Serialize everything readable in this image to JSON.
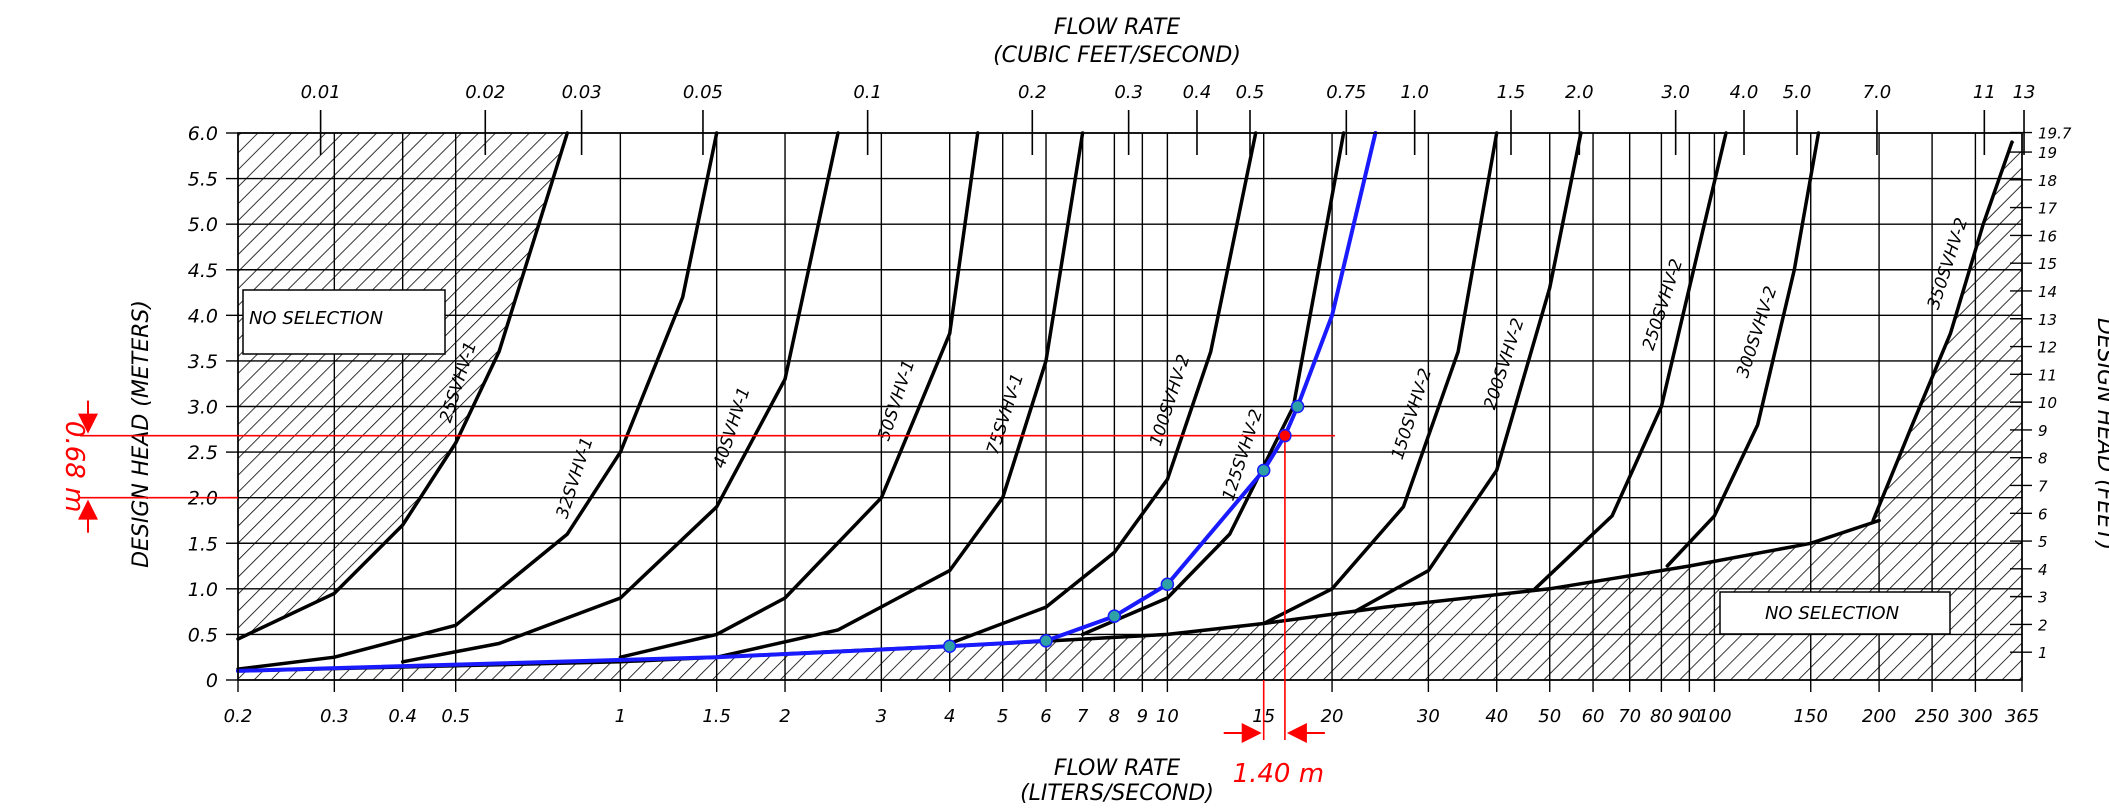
{
  "chart_data": {
    "type": "line",
    "title": "FLOW RATE",
    "subtitle": "(CUBIC FEET/SECOND)",
    "xlabel": "FLOW RATE",
    "xlabel_sub": "(LITERS/SECOND)",
    "ylabel": "DESIGN HEAD (METERS)",
    "y2label": "DESIGN HEAD (FEET)",
    "x_scale": "log",
    "x_range_lps": [
      0.2,
      365
    ],
    "y_range_m": [
      0,
      6
    ],
    "grid": true,
    "bottom_ticks": [
      "0.2",
      "0.3",
      "0.4",
      "0.5",
      "1",
      "1.5",
      "2",
      "3",
      "4",
      "5",
      "6",
      "7",
      "8",
      "9",
      "10",
      "15",
      "20",
      "30",
      "40",
      "50",
      "60",
      "70",
      "80",
      "90",
      "100",
      "150",
      "200",
      "250",
      "300",
      "365"
    ],
    "bottom_tick_values": [
      0.2,
      0.3,
      0.4,
      0.5,
      1,
      1.5,
      2,
      3,
      4,
      5,
      6,
      7,
      8,
      9,
      10,
      15,
      20,
      30,
      40,
      50,
      60,
      70,
      80,
      90,
      100,
      150,
      200,
      250,
      300,
      365
    ],
    "top_ticks": [
      "0.01",
      "0.02",
      "0.03",
      "0.05",
      "0.1",
      "0.2",
      "0.3",
      "0.4",
      "0.5",
      "0.75",
      "1.0",
      "1.5",
      "2.0",
      "3.0",
      "4.0",
      "5.0",
      "7.0",
      "11",
      "13"
    ],
    "top_tick_values": [
      0.01,
      0.02,
      0.03,
      0.05,
      0.1,
      0.2,
      0.3,
      0.4,
      0.5,
      0.75,
      1.0,
      1.5,
      2.0,
      3.0,
      4.0,
      5.0,
      7.0,
      11,
      13
    ],
    "left_ticks": [
      "0",
      "0.5",
      "1.0",
      "1.5",
      "2.0",
      "2.5",
      "3.0",
      "3.5",
      "4.0",
      "4.5",
      "5.0",
      "5.5",
      "6.0"
    ],
    "left_tick_values": [
      0,
      0.5,
      1,
      1.5,
      2,
      2.5,
      3,
      3.5,
      4,
      4.5,
      5,
      5.5,
      6
    ],
    "right_ticks": [
      "1",
      "2",
      "3",
      "4",
      "5",
      "6",
      "7",
      "8",
      "9",
      "10",
      "11",
      "12",
      "13",
      "14",
      "15",
      "16",
      "17",
      "18",
      "19",
      "19.7"
    ],
    "right_tick_values": [
      1,
      2,
      3,
      4,
      5,
      6,
      7,
      8,
      9,
      10,
      11,
      12,
      13,
      14,
      15,
      16,
      17,
      18,
      19,
      19.7
    ],
    "no_selection_labels": [
      "NO SELECTION",
      "NO SELECTION"
    ],
    "series": [
      {
        "name": "25SVHV-1",
        "x": [
          0.2,
          0.3,
          0.4,
          0.5,
          0.6,
          0.8
        ],
        "y": [
          0.45,
          0.95,
          1.7,
          2.6,
          3.6,
          6.0
        ]
      },
      {
        "name": "32SVHV-1",
        "x": [
          0.2,
          0.3,
          0.5,
          0.8,
          1.0,
          1.3,
          1.5
        ],
        "y": [
          0.12,
          0.25,
          0.6,
          1.6,
          2.5,
          4.2,
          6.0
        ]
      },
      {
        "name": "40SVHV-1",
        "x": [
          0.4,
          0.6,
          1.0,
          1.5,
          2.0,
          2.5
        ],
        "y": [
          0.2,
          0.4,
          0.9,
          1.9,
          3.3,
          6.0
        ]
      },
      {
        "name": "50SVHV-1",
        "x": [
          1.0,
          1.5,
          2.0,
          3.0,
          4.0,
          4.5
        ],
        "y": [
          0.25,
          0.5,
          0.9,
          2.0,
          3.8,
          6.0
        ]
      },
      {
        "name": "75SVHV-1",
        "x": [
          1.5,
          2.5,
          4.0,
          5.0,
          6.0,
          7.0
        ],
        "y": [
          0.25,
          0.55,
          1.2,
          2.0,
          3.5,
          6.0
        ]
      },
      {
        "name": "100SVHV-2",
        "x": [
          4.0,
          6.0,
          8.0,
          10.0,
          12.0,
          14.5
        ],
        "y": [
          0.4,
          0.8,
          1.4,
          2.2,
          3.6,
          6.0
        ]
      },
      {
        "name": "125SVHV-2",
        "x": [
          7.0,
          10.0,
          13.0,
          17.0,
          21.0
        ],
        "y": [
          0.5,
          0.9,
          1.6,
          3.0,
          6.0
        ]
      },
      {
        "name": "150SVHV-2",
        "x": [
          15.0,
          20.0,
          27.0,
          34.0,
          40.0
        ],
        "y": [
          0.62,
          1.0,
          1.9,
          3.6,
          6.0
        ]
      },
      {
        "name": "200SVHV-2",
        "x": [
          22.0,
          30.0,
          40.0,
          50.0,
          57.0
        ],
        "y": [
          0.75,
          1.2,
          2.3,
          4.3,
          6.0
        ]
      },
      {
        "name": "250SVHV-2",
        "x": [
          47.0,
          65.0,
          80.0,
          95.0,
          105.0
        ],
        "y": [
          1.0,
          1.8,
          3.0,
          4.9,
          6.0
        ]
      },
      {
        "name": "300SVHV-2",
        "x": [
          82.0,
          100.0,
          120.0,
          140.0,
          155.0
        ],
        "y": [
          1.25,
          1.8,
          2.8,
          4.5,
          6.0
        ]
      },
      {
        "name": "350SVHV-2",
        "x": [
          195.0,
          230.0,
          270.0,
          310.0,
          350.0
        ],
        "y": [
          1.75,
          2.8,
          3.8,
          5.0,
          5.9
        ]
      },
      {
        "name": "selection boundary",
        "x": [
          0.2,
          1.0,
          5.0,
          10.0,
          15.0,
          25.0,
          50.0,
          90.0,
          150.0,
          200.0
        ],
        "y": [
          0.1,
          0.2,
          0.4,
          0.5,
          0.62,
          0.8,
          1.0,
          1.25,
          1.5,
          1.75
        ]
      },
      {
        "name": "system curve",
        "x": [
          0.2,
          1.5,
          4.0,
          6.0,
          8.0,
          10.0,
          15.0,
          16.4,
          17.3,
          20.0,
          24.0
        ],
        "y": [
          0.1,
          0.25,
          0.37,
          0.43,
          0.7,
          1.05,
          2.3,
          2.68,
          3.0,
          4.0,
          6.0
        ]
      }
    ],
    "markers": [
      {
        "x": 4.0,
        "y": 0.37,
        "color": "#2ea1a6"
      },
      {
        "x": 6.0,
        "y": 0.43,
        "color": "#2ea1a6"
      },
      {
        "x": 8.0,
        "y": 0.7,
        "color": "#2ea1a6"
      },
      {
        "x": 10.0,
        "y": 1.05,
        "color": "#2ea1a6"
      },
      {
        "x": 15.0,
        "y": 2.3,
        "color": "#2ea1a6"
      },
      {
        "x": 16.4,
        "y": 2.68,
        "color": "#ff0000"
      },
      {
        "x": 17.3,
        "y": 3.0,
        "color": "#2ea1a6"
      }
    ],
    "annotations": {
      "head_value": "0.68 m",
      "flow_value": "1.40 m",
      "head_line_y_m": 2.68,
      "head_line_bottom_m": 2.0,
      "flow_line_x_lps": 16.4,
      "flow_line_left_x_lps": 15.0
    },
    "colors": {
      "curve": "#000000",
      "system_curve": "#1a1aff",
      "annotation": "#ff0000",
      "marker": "#2ea1a6"
    }
  }
}
